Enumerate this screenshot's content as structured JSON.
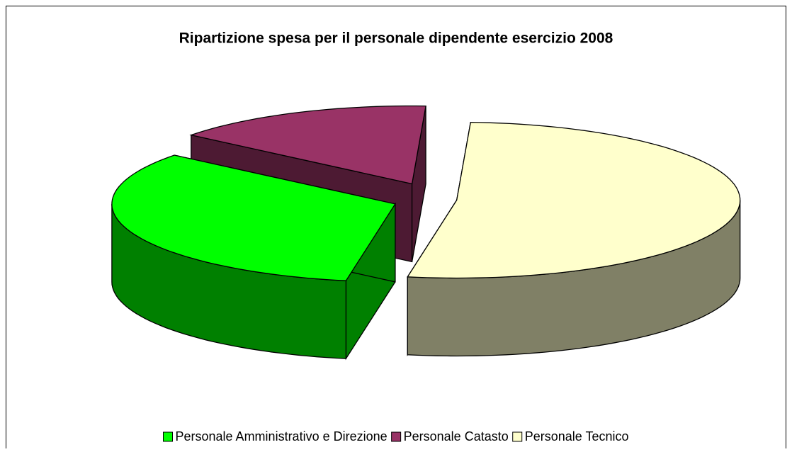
{
  "chart_data": {
    "type": "pie3d",
    "title": "Ripartizione spesa per il personale dipendente esercizio 2008",
    "categories": [
      "Personale Amministrativo e Direzione",
      "Personale Catasto",
      "Personale Tecnico"
    ],
    "values": [
      33,
      15,
      52
    ],
    "colors": [
      "#00ff00",
      "#993366",
      "#ffffcc"
    ],
    "side_colors": [
      "#008000",
      "#4d1a33",
      "#808066"
    ],
    "legend": "bottom"
  }
}
